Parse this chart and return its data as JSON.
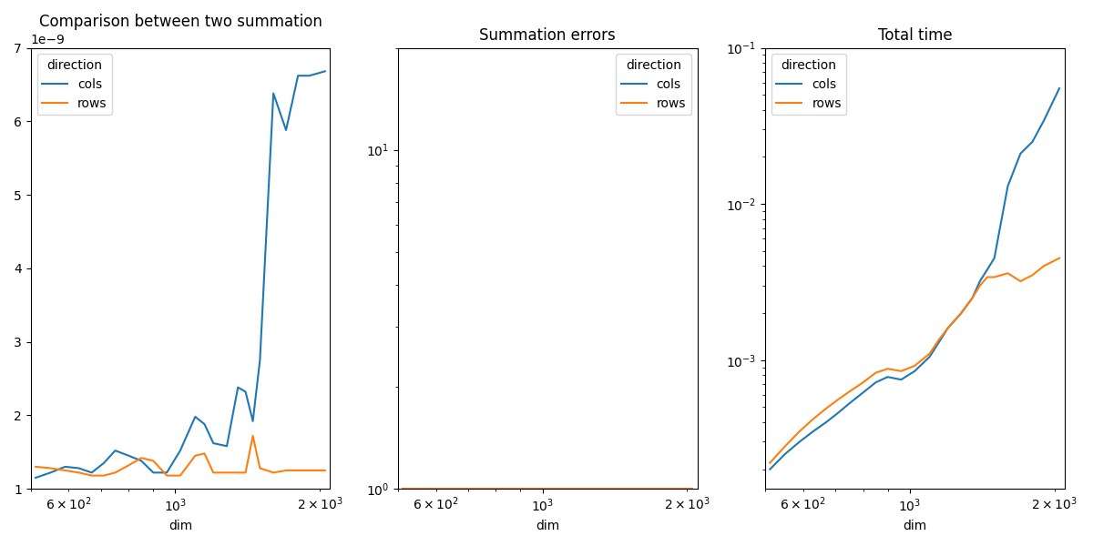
{
  "title1": "Comparison between two summation",
  "title2": "Summation errors",
  "title3": "Total time",
  "xlabel": "dim",
  "legend_title": "direction",
  "cols_label": "cols",
  "rows_label": "rows",
  "blue_color": "#1f77b4",
  "orange_color": "#ff7f0e",
  "x_dims": [
    512,
    550,
    590,
    630,
    670,
    710,
    750,
    800,
    850,
    900,
    960,
    1024,
    1100,
    1150,
    1200,
    1280,
    1350,
    1400,
    1450,
    1500,
    1600,
    1700,
    1800,
    1900,
    2048
  ],
  "plot1_cols": [
    1.15e-09,
    1.22e-09,
    1.3e-09,
    1.28e-09,
    1.22e-09,
    1.35e-09,
    1.52e-09,
    1.45e-09,
    1.38e-09,
    1.22e-09,
    1.22e-09,
    1.52e-09,
    1.98e-09,
    1.88e-09,
    1.62e-09,
    1.58e-09,
    2.38e-09,
    2.32e-09,
    1.92e-09,
    2.75e-09,
    6.38e-09,
    5.88e-09,
    6.62e-09,
    6.62e-09,
    6.68e-09
  ],
  "plot1_rows": [
    1.3e-09,
    1.28e-09,
    1.25e-09,
    1.22e-09,
    1.18e-09,
    1.18e-09,
    1.22e-09,
    1.32e-09,
    1.42e-09,
    1.38e-09,
    1.18e-09,
    1.18e-09,
    1.45e-09,
    1.48e-09,
    1.22e-09,
    1.22e-09,
    1.22e-09,
    1.22e-09,
    1.72e-09,
    1.28e-09,
    1.22e-09,
    1.25e-09,
    1.25e-09,
    1.25e-09,
    1.25e-09
  ],
  "plot2_cols": [
    1.0,
    1.0,
    1.0,
    1.0,
    1.0,
    1.0,
    1.0,
    1.0,
    1.0,
    1.0,
    1.0,
    1.0,
    1.0,
    1.0,
    1.0,
    1.0,
    1.0,
    1.0,
    1.0,
    1.0,
    1.0,
    1.0,
    1.0,
    1.0,
    1.0
  ],
  "plot2_rows": [
    1.0,
    1.0,
    1.0,
    1.0,
    1.0,
    1.0,
    1.0,
    1.0,
    1.0,
    1.0,
    1.0,
    1.0,
    1.0,
    1.0,
    1.0,
    1.0,
    1.0,
    1.0,
    1.0,
    1.0,
    1.0,
    1.0,
    1.0,
    1.0,
    1.0
  ],
  "plot3_cols": [
    0.0002,
    0.00025,
    0.0003,
    0.00035,
    0.0004,
    0.00046,
    0.00053,
    0.00062,
    0.00072,
    0.00078,
    0.00075,
    0.00085,
    0.00105,
    0.0013,
    0.0016,
    0.002,
    0.0025,
    0.0032,
    0.0038,
    0.0045,
    0.013,
    0.021,
    0.025,
    0.034,
    0.055
  ],
  "plot3_rows": [
    0.00022,
    0.00028,
    0.00035,
    0.00042,
    0.00049,
    0.00056,
    0.00063,
    0.00072,
    0.00083,
    0.00088,
    0.00085,
    0.00092,
    0.0011,
    0.00135,
    0.0016,
    0.002,
    0.0025,
    0.003,
    0.0034,
    0.0034,
    0.0036,
    0.0032,
    0.0035,
    0.004,
    0.0045
  ],
  "plot1_ylim": [
    1e-09,
    7e-09
  ],
  "plot2_ylim": [
    1.0,
    20.0
  ],
  "plot3_ylim": [
    0.00015,
    0.1
  ],
  "x_min": 500,
  "x_max": 2100
}
